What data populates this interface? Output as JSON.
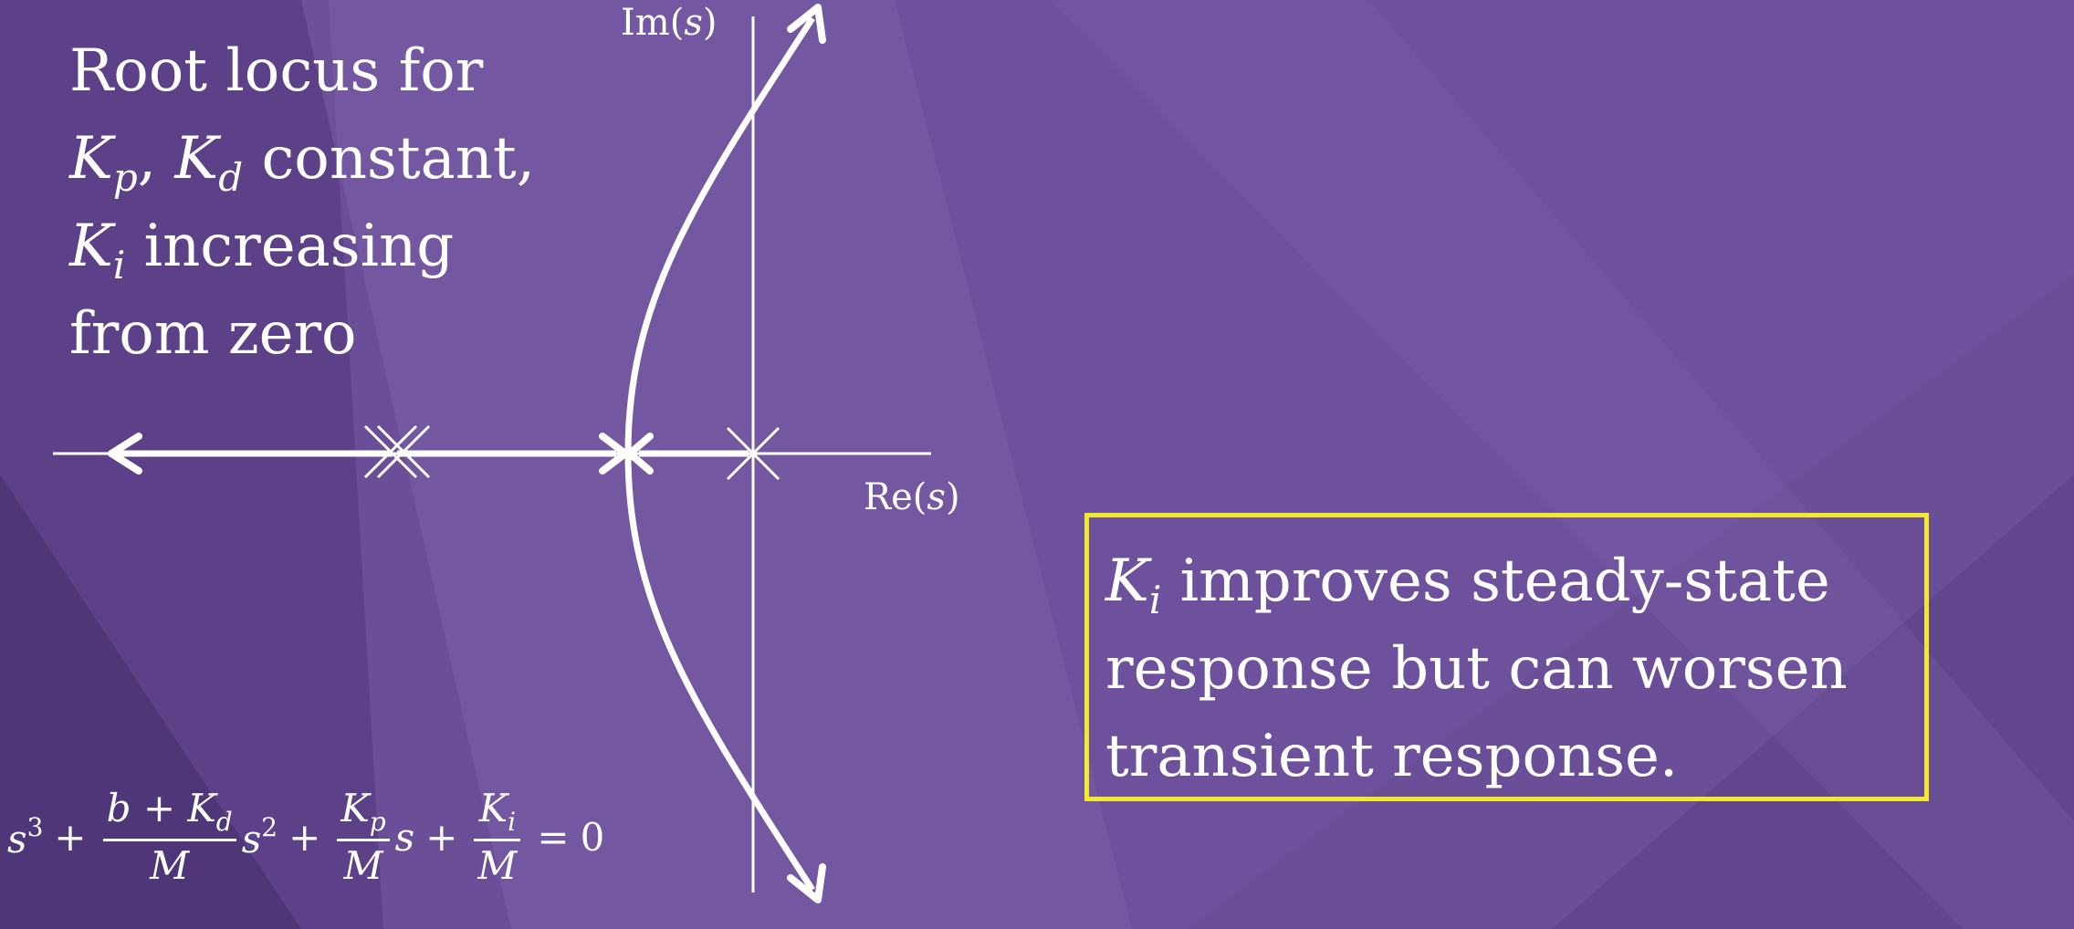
{
  "slide": {
    "colors": {
      "background": "#6a4e98",
      "foreground": "#ffffff",
      "callout_border": "#f2e92d"
    }
  },
  "title": {
    "line1": "Root locus for",
    "line2_k1": "K",
    "line2_k1_sub": "p",
    "line2_comma": ",",
    "line2_k2": "K",
    "line2_k2_sub": "d",
    "line2_rest": " constant,",
    "line3_k": "K",
    "line3_k_sub": "i",
    "line3_rest": " increasing",
    "line4": "from zero"
  },
  "axes": {
    "imag_label_prefix": "Im(",
    "imag_label_var": "s",
    "imag_label_suffix": ")",
    "real_label_prefix": "Re(",
    "real_label_var": "s",
    "real_label_suffix": ")"
  },
  "callout": {
    "k": "K",
    "k_sub": "i",
    "line1_rest": " improves steady-state",
    "line2": "response but can worsen",
    "line3": "transient response."
  },
  "equation": {
    "s3_base": "s",
    "s3_exp": "3",
    "plus1": "+",
    "frac1_num_b": "b",
    "frac1_num_plus": " + ",
    "frac1_num_k": "K",
    "frac1_num_k_sub": "d",
    "frac1_den": "M",
    "s2_base": "s",
    "s2_exp": "2",
    "plus2": "+",
    "frac2_num_k": "K",
    "frac2_num_k_sub": "p",
    "frac2_den": "M",
    "s1": "s",
    "plus3": "+",
    "frac3_num_k": "K",
    "frac3_num_k_sub": "i",
    "frac3_den": "M",
    "equals": "=",
    "rhs": "0"
  }
}
